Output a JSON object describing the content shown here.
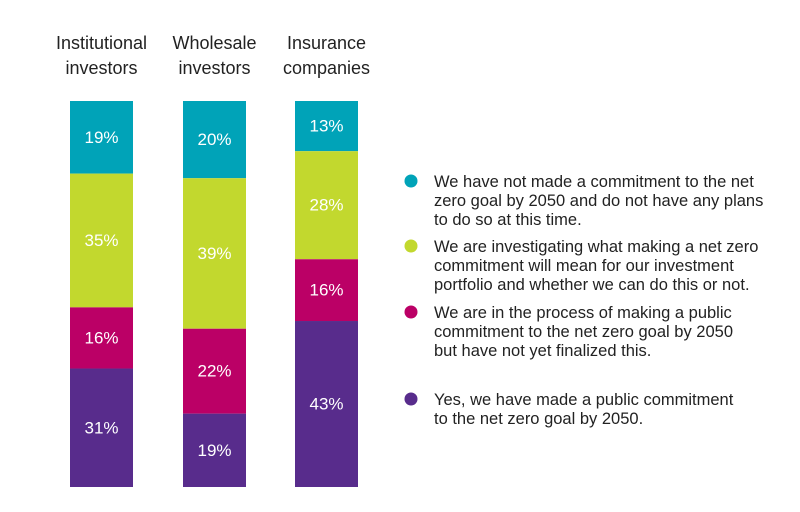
{
  "chart_data": {
    "type": "bar",
    "stacked": true,
    "orientation": "vertical",
    "unit": "%",
    "categories": [
      [
        "Institutional",
        "investors"
      ],
      [
        "Wholesale",
        "investors"
      ],
      [
        "Insurance",
        "companies"
      ]
    ],
    "series": [
      {
        "name": "We have not made a commitment to the net zero goal by 2050 and do not have any plans to do so at this time.",
        "legend_lines": [
          "We have not made a commitment to the net",
          "zero goal by 2050 and do not have any plans",
          "to do so at this time."
        ],
        "color": "#00a3b8",
        "values": [
          19,
          20,
          13
        ],
        "labels": [
          "19%",
          "20%",
          "13%"
        ]
      },
      {
        "name": "We are investigating what making a net zero commitment will mean for our investment portfolio and whether we can do this or not.",
        "legend_lines": [
          "We are investigating what making a net zero",
          "commitment will mean for our investment",
          "portfolio and whether we can do this or not."
        ],
        "color": "#c2d82e",
        "values": [
          35,
          39,
          28
        ],
        "labels": [
          "35%",
          "39%",
          "28%"
        ]
      },
      {
        "name": "We are in the process of making a public commitment to the net zero goal by 2050 but have not yet finalized this.",
        "legend_lines": [
          "We are in the process of making a public",
          "commitment to the net zero goal by 2050",
          "but have not yet finalized this."
        ],
        "color": "#bb0066",
        "values": [
          16,
          22,
          16
        ],
        "labels": [
          "16%",
          "22%",
          "16%"
        ]
      },
      {
        "name": "Yes, we have made a public commitment to the net zero goal by 2050.",
        "legend_lines": [
          "Yes, we have made a public commitment",
          "to the net zero goal by 2050."
        ],
        "color": "#582c8c",
        "values": [
          31,
          19,
          43
        ],
        "labels": [
          "31%",
          "19%",
          "43%"
        ]
      }
    ],
    "legend_placement": "right",
    "grid": false,
    "axes_visible": false
  }
}
